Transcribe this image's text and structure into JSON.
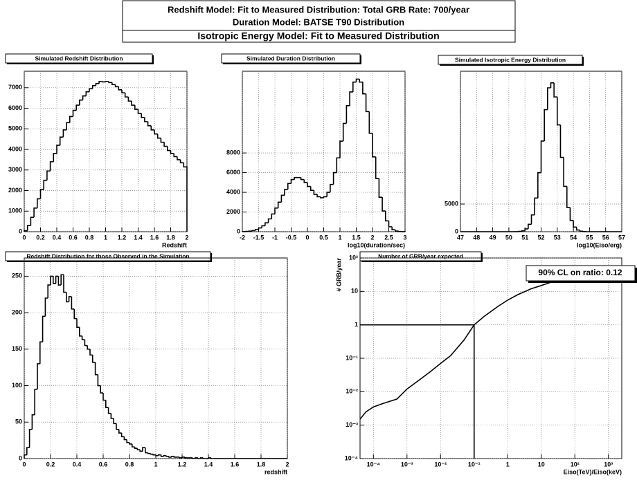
{
  "header": {
    "lines": [
      "Redshift Model: Fit to Measured Distribution: Total GRB Rate: 700/year",
      "Duration Model: BATSE T90 Distribution",
      "Isotropic Energy Model: Fit to Measured Distribution"
    ]
  },
  "chart_data": [
    {
      "type": "histogram",
      "title": "Simulated Redshift Distribution",
      "xlabel": "Redshift",
      "color": "#000000",
      "grid": true,
      "bins": [
        0,
        0.04,
        0.08,
        0.12,
        0.16,
        0.2,
        0.24,
        0.28,
        0.32,
        0.36,
        0.4,
        0.44,
        0.48,
        0.52,
        0.56,
        0.6,
        0.64,
        0.68,
        0.72,
        0.76,
        0.8,
        0.84,
        0.88,
        0.92,
        0.96,
        1,
        1.04,
        1.08,
        1.12,
        1.16,
        1.2,
        1.24,
        1.28,
        1.32,
        1.36,
        1.4,
        1.44,
        1.48,
        1.52,
        1.56,
        1.6,
        1.64,
        1.68,
        1.72,
        1.76,
        1.8,
        1.84,
        1.88,
        1.92,
        1.96,
        2
      ],
      "values": [
        50,
        300,
        700,
        1150,
        1600,
        2050,
        2500,
        2950,
        3400,
        3800,
        4200,
        4600,
        4950,
        5300,
        5600,
        5900,
        6150,
        6400,
        6600,
        6800,
        6950,
        7100,
        7200,
        7300,
        7280,
        7300,
        7250,
        7150,
        7050,
        6900,
        6750,
        6550,
        6350,
        6150,
        5950,
        5750,
        5550,
        5350,
        5150,
        4950,
        4750,
        4550,
        4350,
        4150,
        3950,
        3800,
        3650,
        3500,
        3350,
        3150
      ],
      "xlim": [
        0,
        2
      ],
      "ylim": [
        0,
        7800
      ],
      "xticks": [
        0,
        0.2,
        0.4,
        0.6,
        0.8,
        1,
        1.2,
        1.4,
        1.6,
        1.8,
        2
      ],
      "yticks": [
        0,
        1000,
        2000,
        3000,
        4000,
        5000,
        6000,
        7000
      ]
    },
    {
      "type": "histogram",
      "title": "Simulated Duration Distribution",
      "xlabel": "log10(duration/sec)",
      "color": "#000000",
      "grid": true,
      "bins": [
        -2,
        -1.9,
        -1.8,
        -1.7,
        -1.6,
        -1.5,
        -1.4,
        -1.3,
        -1.2,
        -1.1,
        -1,
        -0.9,
        -0.8,
        -0.7,
        -0.6,
        -0.5,
        -0.4,
        -0.3,
        -0.2,
        -0.1,
        0,
        0.1,
        0.2,
        0.3,
        0.4,
        0.5,
        0.6,
        0.7,
        0.8,
        0.9,
        1,
        1.1,
        1.2,
        1.3,
        1.4,
        1.5,
        1.6,
        1.7,
        1.8,
        1.9,
        2,
        2.1,
        2.2,
        2.3,
        2.4,
        2.5,
        2.6,
        2.7,
        2.8,
        2.9,
        3
      ],
      "values": [
        10,
        30,
        60,
        120,
        220,
        380,
        600,
        900,
        1300,
        1800,
        2400,
        3000,
        3700,
        4300,
        4900,
        5300,
        5500,
        5500,
        5300,
        5000,
        4600,
        4200,
        3800,
        3550,
        3450,
        3550,
        4000,
        4800,
        6000,
        7500,
        9200,
        11000,
        12800,
        14200,
        15200,
        15500,
        15200,
        14000,
        12200,
        10000,
        7600,
        5400,
        3500,
        2100,
        1100,
        500,
        200,
        70,
        20,
        5
      ],
      "xlim": [
        -2,
        3
      ],
      "ylim": [
        0,
        16300
      ],
      "xticks": [
        -2,
        -1.5,
        -1,
        -0.5,
        0,
        0.5,
        1,
        1.5,
        2,
        2.5,
        3
      ],
      "yticks": [
        0,
        2000,
        4000,
        6000,
        8000
      ]
    },
    {
      "type": "histogram",
      "title": "Simulated Isotropic Energy Distribution",
      "xlabel": "log10(Eiso/erg)",
      "color": "#000000",
      "grid": true,
      "bins": [
        47,
        47.2,
        47.4,
        47.6,
        47.8,
        48,
        48.2,
        48.4,
        48.6,
        48.8,
        49,
        49.2,
        49.4,
        49.6,
        49.8,
        50,
        50.2,
        50.4,
        50.6,
        50.8,
        51,
        51.2,
        51.4,
        51.6,
        51.8,
        52,
        52.2,
        52.4,
        52.6,
        52.8,
        53,
        53.2,
        53.4,
        53.6,
        53.8,
        54,
        54.2,
        54.4,
        54.6,
        54.8,
        55,
        55.2,
        55.4,
        55.6,
        55.8,
        56,
        56.2,
        56.4,
        56.6,
        56.8,
        57
      ],
      "values": [
        0,
        0,
        0,
        0,
        0,
        0,
        0,
        0,
        0,
        0,
        0,
        0,
        0,
        0,
        0,
        0,
        0,
        13,
        51,
        171,
        510,
        1330,
        3030,
        6080,
        10660,
        16380,
        22050,
        26000,
        26900,
        24350,
        19300,
        13430,
        8190,
        4370,
        2040,
        836,
        300,
        94,
        26,
        0,
        0,
        0,
        0,
        0,
        0,
        0,
        0,
        0,
        0,
        0
      ],
      "xlim": [
        47,
        57
      ],
      "ylim": [
        0,
        29000
      ],
      "xticks": [
        47,
        48,
        49,
        50,
        51,
        52,
        53,
        54,
        55,
        56,
        57
      ],
      "yticks": [
        0,
        5000
      ]
    },
    {
      "type": "histogram",
      "title": "Redshift Distribution for those Observed in the Simulation",
      "xlabel": "redshift",
      "color": "#000000",
      "grid": true,
      "bins": [
        0,
        0.02,
        0.04,
        0.06,
        0.08,
        0.1,
        0.12,
        0.14,
        0.16,
        0.18,
        0.2,
        0.22,
        0.24,
        0.26,
        0.28,
        0.3,
        0.32,
        0.34,
        0.36,
        0.38,
        0.4,
        0.42,
        0.44,
        0.46,
        0.48,
        0.5,
        0.52,
        0.54,
        0.56,
        0.58,
        0.6,
        0.62,
        0.64,
        0.66,
        0.68,
        0.7,
        0.72,
        0.74,
        0.76,
        0.78,
        0.8,
        0.82,
        0.84,
        0.86,
        0.88,
        0.9,
        0.92,
        0.94,
        0.96,
        0.98,
        1,
        1.02,
        1.04,
        1.06,
        1.08,
        1.1,
        1.12,
        1.14,
        1.16,
        1.18,
        1.2,
        1.22,
        1.24,
        1.26,
        1.28,
        1.3,
        1.32,
        1.34,
        1.36,
        1.38,
        1.4,
        1.42,
        1.44,
        1.46,
        1.48,
        1.5,
        1.52,
        1.54,
        1.56,
        1.58,
        1.6,
        1.62,
        1.64,
        1.66,
        1.68,
        1.7,
        1.72,
        1.74,
        1.76,
        1.78,
        1.8,
        1.82,
        1.84,
        1.86,
        1.88,
        1.9,
        1.92,
        1.94,
        1.96,
        1.98,
        2
      ],
      "values": [
        5,
        15,
        40,
        60,
        95,
        130,
        160,
        195,
        220,
        238,
        250,
        240,
        250,
        238,
        252,
        228,
        215,
        222,
        205,
        192,
        180,
        168,
        163,
        155,
        150,
        142,
        132,
        115,
        100,
        90,
        80,
        70,
        62,
        55,
        48,
        40,
        35,
        30,
        26,
        22,
        20,
        16,
        14,
        12,
        10,
        15,
        8,
        7,
        6,
        5,
        4,
        5,
        3,
        4,
        3,
        2,
        3,
        2,
        2,
        1,
        2,
        1,
        1,
        1,
        0,
        1,
        0,
        1,
        0,
        0,
        1,
        0,
        0,
        0,
        0,
        0,
        0,
        0,
        0,
        0,
        0,
        0,
        0,
        0,
        0,
        0,
        0,
        0,
        0,
        0,
        0,
        0,
        0,
        0,
        0,
        0,
        0,
        0,
        0,
        0
      ],
      "xlim": [
        0,
        2
      ],
      "ylim": [
        0,
        275
      ],
      "xticks": [
        0,
        0.2,
        0.4,
        0.6,
        0.8,
        1,
        1.2,
        1.4,
        1.6,
        1.8,
        2
      ],
      "yticks": [
        0,
        50,
        100,
        150,
        200,
        250
      ]
    },
    {
      "type": "line",
      "title": "Number of GRB/year expected",
      "xlabel": "Eiso(TeV)/Eiso(keV)",
      "ylabel": "# GRB/year",
      "annotation": "90% CL on ratio: 0.12",
      "color": "#000000",
      "grid": true,
      "xscale": "log",
      "yscale": "log",
      "x": [
        4e-05,
        6e-05,
        0.0001,
        0.0002,
        0.0005,
        0.001,
        0.002,
        0.005,
        0.01,
        0.02,
        0.05,
        0.1,
        0.2,
        0.5,
        1,
        2,
        5,
        10,
        20,
        50,
        100,
        200,
        500,
        800
      ],
      "values": [
        0.0015,
        0.0025,
        0.0035,
        0.0045,
        0.006,
        0.012,
        0.02,
        0.04,
        0.07,
        0.12,
        0.35,
        1,
        1.8,
        3.5,
        5.5,
        8,
        12,
        15,
        19,
        25,
        30,
        37,
        47,
        52
      ],
      "cut": {
        "x": 0.1,
        "y": 1
      },
      "xlim": [
        4e-05,
        2500
      ],
      "ylim": [
        0.0001,
        100
      ],
      "xticks": [
        {
          "value": 0.0001,
          "label": "10⁻⁴"
        },
        {
          "value": 0.001,
          "label": "10⁻³"
        },
        {
          "value": 0.01,
          "label": "10⁻²"
        },
        {
          "value": 0.1,
          "label": "10⁻¹"
        },
        1,
        10,
        {
          "value": 100,
          "label": "10²"
        },
        {
          "value": 1000,
          "label": "10³"
        }
      ],
      "yticks": [
        {
          "value": 0.0001,
          "label": "10⁻⁴"
        },
        {
          "value": 0.001,
          "label": "10⁻³"
        },
        {
          "value": 0.01,
          "label": "10⁻²"
        },
        {
          "value": 0.1,
          "label": "10⁻¹"
        },
        1,
        10,
        {
          "value": 100,
          "label": "10²"
        }
      ]
    }
  ]
}
